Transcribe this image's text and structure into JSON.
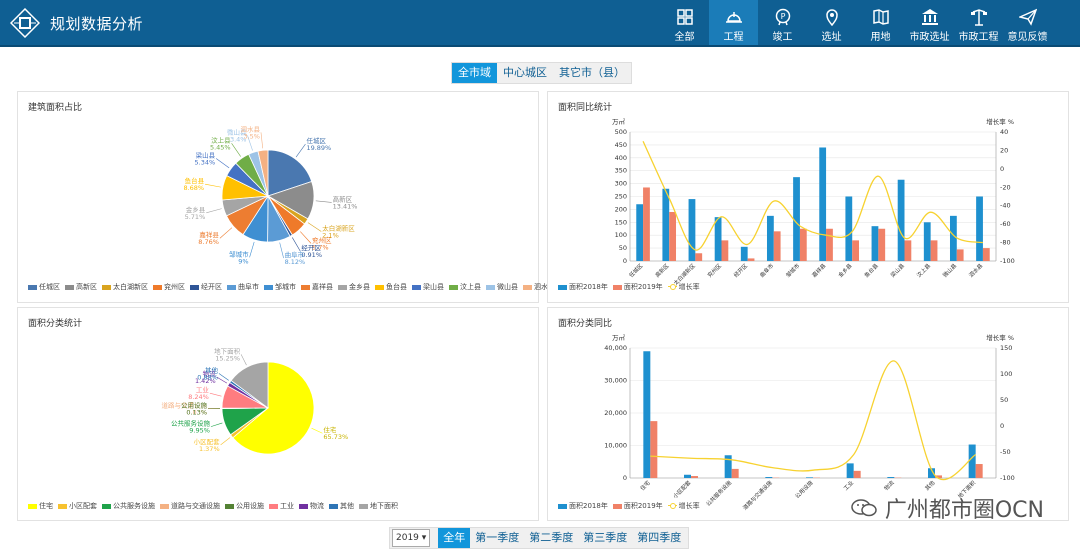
{
  "header": {
    "title": "规划数据分析",
    "nav": [
      {
        "label": "全部",
        "icon": "grid-icon"
      },
      {
        "label": "工程",
        "icon": "helmet-icon",
        "active": true
      },
      {
        "label": "竣工",
        "icon": "certificate-icon"
      },
      {
        "label": "选址",
        "icon": "location-pin-icon"
      },
      {
        "label": "用地",
        "icon": "map-book-icon"
      },
      {
        "label": "市政选址",
        "icon": "government-building-icon"
      },
      {
        "label": "市政工程",
        "icon": "street-lamp-icon"
      },
      {
        "label": "意见反馈",
        "icon": "paper-plane-icon"
      }
    ]
  },
  "scope_tabs": [
    "全市域",
    "中心城区",
    "其它市（县）"
  ],
  "scope_active": 0,
  "panels": {
    "p1": {
      "title": "建筑面积占比"
    },
    "p2": {
      "title": "面积同比统计"
    },
    "p3": {
      "title": "面积分类统计"
    },
    "p4": {
      "title": "面积分类同比"
    }
  },
  "bottom": {
    "year": "2019",
    "periods": [
      "全年",
      "第一季度",
      "第二季度",
      "第三季度",
      "第四季度"
    ],
    "active": 0
  },
  "watermark": {
    "text": "广州都市圈OCN"
  },
  "chart_data": [
    {
      "type": "pie",
      "title": "建筑面积占比",
      "labels": [
        "任城区",
        "高新区",
        "太白湖新区",
        "兖州区",
        "经开区",
        "曲阜市",
        "邹城市",
        "嘉祥县",
        "金乡县",
        "鱼台县",
        "梁山县",
        "汶上县",
        "微山县",
        "泗水县"
      ],
      "label_texts": [
        "19.89%",
        "13.41%",
        "2.1%",
        "5.7%",
        "0.91%",
        "8.12%",
        "9%",
        "8.76%",
        "5.71%",
        "8.68%",
        "5.34%",
        "5.45%",
        "3.4%",
        "3.5%"
      ],
      "values": [
        19.89,
        13.41,
        2.1,
        5.7,
        0.91,
        8.12,
        9,
        8.76,
        5.71,
        8.68,
        5.34,
        5.45,
        3.4,
        3.5
      ],
      "colors": [
        "#4a78b0",
        "#8c8c8c",
        "#d9a41f",
        "#ef7a2a",
        "#2f5597",
        "#5b9bd5",
        "#3f8fd2",
        "#ed7d31",
        "#a5a5a5",
        "#ffc000",
        "#4472c4",
        "#70ad47",
        "#9dc3e6",
        "#f4b183"
      ],
      "legend": "bottom"
    },
    {
      "type": "bar+line",
      "title": "面积同比统计",
      "categories": [
        "任城区",
        "高新区",
        "太白湖新区",
        "兖州区",
        "经开区",
        "曲阜市",
        "邹城市",
        "嘉祥县",
        "金乡县",
        "鱼台县",
        "梁山县",
        "汶上县",
        "微山县",
        "泗水县"
      ],
      "ylabel_left": "万㎡",
      "ylabel_right": "增长率 %",
      "ylim_left": [
        0,
        500
      ],
      "yticks_left": [
        "0",
        "50",
        "100",
        "150",
        "200",
        "250",
        "300",
        "350",
        "400",
        "450",
        "500"
      ],
      "ylim_right": [
        -100,
        40
      ],
      "yticks_right": [
        "-100",
        "-80",
        "-60",
        "-40",
        "-20",
        "0",
        "20",
        "40"
      ],
      "series": [
        {
          "name": "面积2018年",
          "kind": "bar",
          "color": "#1e90cf",
          "values": [
            220,
            280,
            240,
            170,
            55,
            175,
            325,
            440,
            250,
            135,
            315,
            150,
            175,
            250
          ]
        },
        {
          "name": "面积2019年",
          "kind": "bar",
          "color": "#f08167",
          "values": [
            285,
            190,
            30,
            80,
            10,
            115,
            125,
            125,
            80,
            125,
            80,
            80,
            45,
            50
          ]
        },
        {
          "name": "增长率",
          "kind": "line",
          "axis": "right",
          "color": "#f7d230",
          "values": [
            30,
            -32,
            -88,
            -52,
            -82,
            -35,
            -62,
            -72,
            -68,
            -8,
            -75,
            -47,
            -75,
            -80
          ]
        }
      ],
      "legend": "bottom"
    },
    {
      "type": "pie",
      "title": "面积分类统计",
      "labels": [
        "住宅",
        "小区配套",
        "公共服务设施",
        "道路与交通设施",
        "公用设施",
        "工业",
        "物流",
        "其他",
        "地下面积"
      ],
      "label_texts": [
        "65.73%",
        "1.37%",
        "9.95%",
        "0.03%",
        "0.13%",
        "8.24%",
        "1.42%",
        "0.88%",
        "15.25%"
      ],
      "values": [
        65.73,
        1.37,
        9.95,
        0.03,
        0.13,
        8.24,
        1.42,
        0.88,
        15.25
      ],
      "colors": [
        "#ffff00",
        "#f7c22f",
        "#1fa34a",
        "#f4b183",
        "#548235",
        "#ff7c80",
        "#7030a0",
        "#2e75b6",
        "#a5a5a5"
      ],
      "legend": "bottom"
    },
    {
      "type": "bar+line",
      "title": "面积分类同比",
      "categories": [
        "住宅",
        "小区配套",
        "公共服务设施",
        "道路与交通设施",
        "公用设施",
        "工业",
        "物流",
        "其他",
        "地下面积"
      ],
      "ylabel_left": "万㎡",
      "ylabel_right": "增长率 %",
      "ylim_left": [
        0,
        40000
      ],
      "yticks_left": [
        "0",
        "10,000",
        "20,000",
        "30,000",
        "40,000"
      ],
      "ylim_right": [
        -100,
        150
      ],
      "yticks_right": [
        "-100",
        "-50",
        "0",
        "50",
        "100",
        "150"
      ],
      "series": [
        {
          "name": "面积2018年",
          "kind": "bar",
          "color": "#1e90cf",
          "values": [
            39000,
            1000,
            7000,
            300,
            200,
            4500,
            300,
            3000,
            10300
          ]
        },
        {
          "name": "面积2019年",
          "kind": "bar",
          "color": "#f08167",
          "values": [
            17500,
            600,
            2800,
            100,
            100,
            2200,
            100,
            800,
            4300
          ]
        },
        {
          "name": "增长率",
          "kind": "line",
          "axis": "right",
          "color": "#f7d230",
          "values": [
            -58,
            -62,
            -65,
            -80,
            -85,
            -55,
            125,
            -95,
            -55
          ]
        }
      ],
      "legend": "bottom"
    }
  ]
}
